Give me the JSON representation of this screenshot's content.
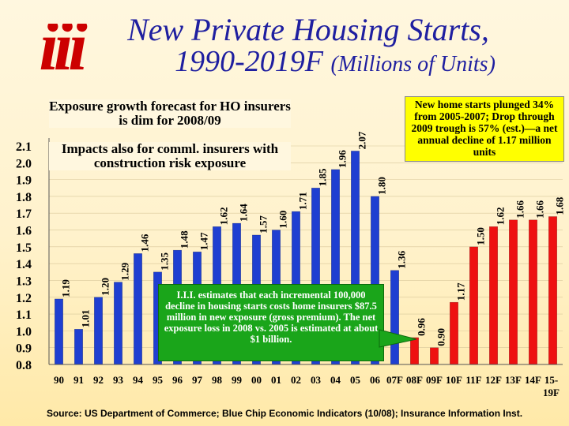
{
  "title": {
    "line1": "New Private Housing Starts,",
    "line2": "1990-2019F",
    "line2_sub": "(Millions of Units)"
  },
  "logo": {
    "text": "iii"
  },
  "annotations": {
    "top_left": "Exposure growth forecast for HO insurers is dim for 2008/09",
    "mid_left": "Impacts also for comml. insurers with construction risk exposure",
    "top_right": "New home starts plunged 34% from 2005-2007; Drop through 2009 trough is 57% (est.)—a net annual decline of 1.17 million units",
    "green_box": "I.I.I. estimates that each incremental 100,000 decline in housing starts costs home insurers $87.5 million in new exposure (gross premium). The net exposure loss in 2008 vs. 2005 is estimated at about $1 billion."
  },
  "source": "Source: US Department of Commerce; Blue Chip Economic Indicators (10/08); Insurance Information Inst.",
  "colors": {
    "actual_bar": "#1f3fd1",
    "forecast_bar": "#ee1111",
    "title": "#1f1fa0",
    "logo": "#cc0000",
    "callout": "#ffff00",
    "green_box": "#1aa51a"
  },
  "chart_data": {
    "type": "bar",
    "title": "New Private Housing Starts, 1990-2019F (Millions of Units)",
    "xlabel": "",
    "ylabel": "",
    "ylim": [
      0.8,
      2.1
    ],
    "yticks": [
      "2.1",
      "2.0",
      "1.9",
      "1.8",
      "1.7",
      "1.6",
      "1.5",
      "1.4",
      "1.3",
      "1.2",
      "1.1",
      "1.0",
      "0.9",
      "0.8"
    ],
    "categories": [
      "90",
      "91",
      "92",
      "93",
      "94",
      "95",
      "96",
      "97",
      "98",
      "99",
      "00",
      "01",
      "02",
      "03",
      "04",
      "05",
      "06",
      "07F",
      "08F",
      "09F",
      "10F",
      "11F",
      "12F",
      "13F",
      "14F",
      "15-19F"
    ],
    "values": [
      1.19,
      1.01,
      1.2,
      1.29,
      1.46,
      1.35,
      1.48,
      1.47,
      1.62,
      1.64,
      1.57,
      1.6,
      1.71,
      1.85,
      1.96,
      2.07,
      1.8,
      1.36,
      0.96,
      0.9,
      1.17,
      1.5,
      1.62,
      1.66,
      1.66,
      1.68
    ],
    "labels": [
      "1.19",
      "1.01",
      "1.20",
      "1.29",
      "1.46",
      "1.35",
      "1.48",
      "1.47",
      "1.62",
      "1.64",
      "1.57",
      "1.60",
      "1.71",
      "1.85",
      "1.96",
      "2.07",
      "1.80",
      "1.36",
      "0.96",
      "0.90",
      "1.17",
      "1.50",
      "1.62",
      "1.66",
      "1.66",
      "1.68"
    ],
    "forecast_start_index": 18
  }
}
